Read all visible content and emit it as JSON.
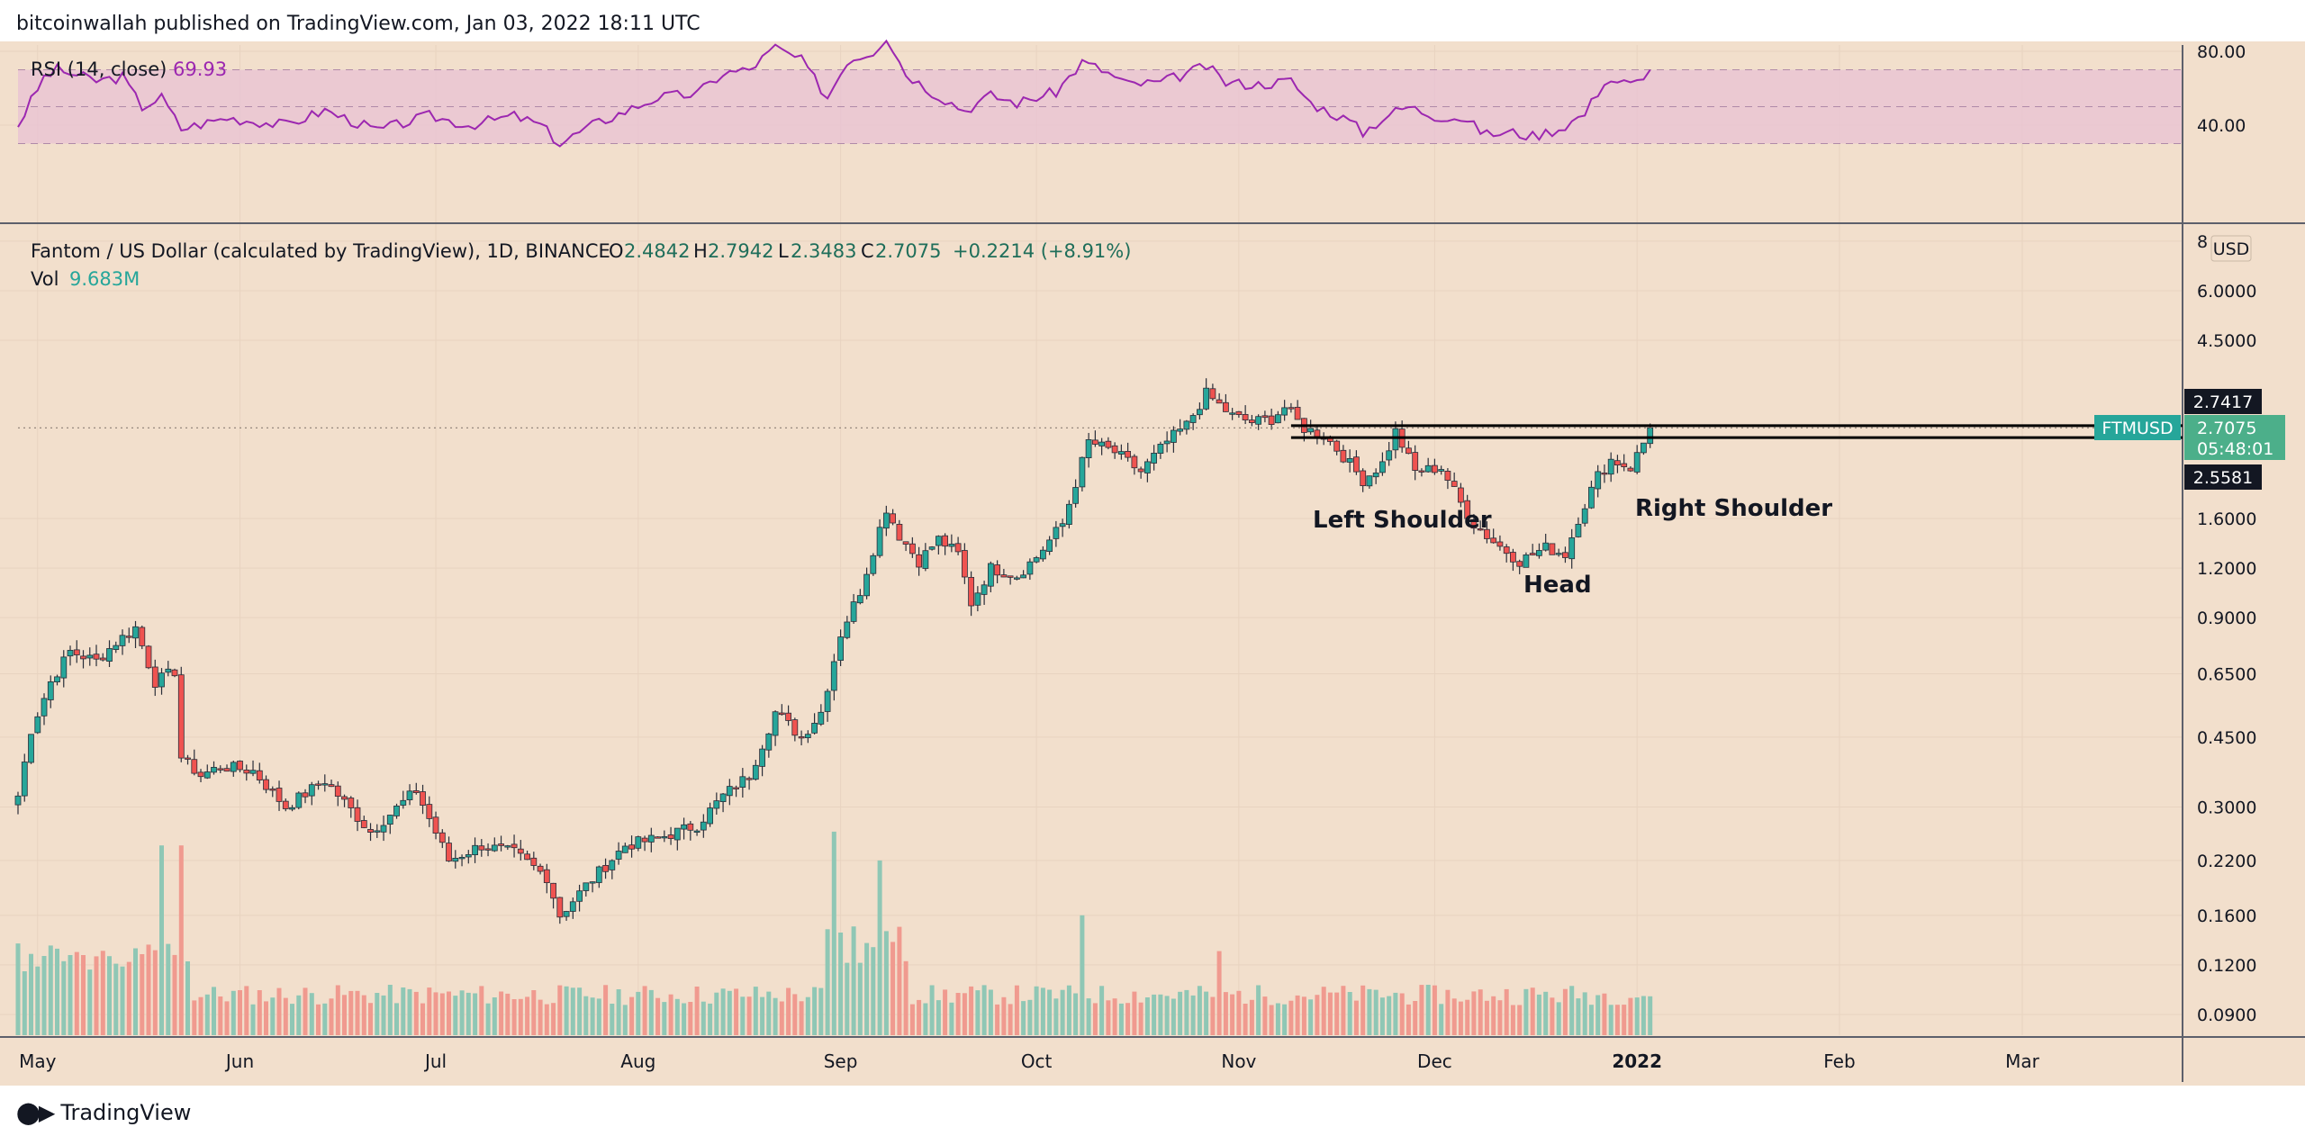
{
  "header": {
    "published": "bitcoinwallah published on TradingView.com, Jan 03, 2022 18:11 UTC"
  },
  "footer": {
    "brand": "TradingView",
    "logo_icon": "tradingview-logo-icon"
  },
  "colors": {
    "background": "#f2dfcc",
    "up": "#26a69a",
    "down": "#ef5350",
    "up_vol": "#8fc7b5",
    "down_vol": "#f09a8f",
    "rsi_line": "#9c27b0",
    "rsi_band": "#e8c3d3",
    "grid": "#e8d3c0",
    "text": "#131722",
    "price_label_bg": "#26a69a"
  },
  "rsi": {
    "title": "RSI (14, close)",
    "value": "69.93",
    "ticks": [
      "80.00",
      "40.00"
    ]
  },
  "main": {
    "title": "Fantom / US Dollar (calculated by TradingView), 1D, BINANCE",
    "ohlc": {
      "o_label": "O",
      "o": "2.4842",
      "h_label": "H",
      "h": "2.7942",
      "l_label": "L",
      "l": "2.3483",
      "c_label": "C",
      "c": "2.7075",
      "change": "+0.2214 (+8.91%)"
    },
    "vol_label": "Vol",
    "vol_value": "9.683M",
    "currency": "USD",
    "price_ticks": [
      "8",
      "6.0000",
      "4.5000",
      "1.6000",
      "1.2000",
      "0.9000",
      "0.6500",
      "0.4500",
      "0.3000",
      "0.2200",
      "0.1600",
      "0.1200",
      "0.0900"
    ],
    "month_labels": [
      "May",
      "Jun",
      "Jul",
      "Aug",
      "Sep",
      "Oct",
      "Nov",
      "Dec",
      "2022",
      "Feb",
      "Mar"
    ],
    "price_labels": {
      "upper_level": "2.7417",
      "symbol": "FTMUSD",
      "current": "2.7075",
      "countdown": "05:48:01",
      "lower_level": "2.5581"
    },
    "annotations": {
      "left_shoulder": "Left Shoulder",
      "head": "Head",
      "right_shoulder": "Right Shoulder"
    }
  },
  "chart_data": {
    "type": "candlestick",
    "series_name": "FTMUSD",
    "interval": "1D",
    "x_range": [
      "2021-04-28",
      "2022-03-25"
    ],
    "y_scale": "log",
    "resistance_levels": [
      2.7417,
      2.5581
    ],
    "last_close": 2.7075,
    "rsi_last": 69.93,
    "close_anchors": [
      [
        "2021-04-28",
        0.32
      ],
      [
        "2021-04-30",
        0.47
      ],
      [
        "2021-05-03",
        0.62
      ],
      [
        "2021-05-06",
        0.74
      ],
      [
        "2021-05-10",
        0.7
      ],
      [
        "2021-05-13",
        0.78
      ],
      [
        "2021-05-16",
        0.85
      ],
      [
        "2021-05-19",
        0.62
      ],
      [
        "2021-05-22",
        0.66
      ],
      [
        "2021-05-23",
        0.4
      ],
      [
        "2021-05-26",
        0.36
      ],
      [
        "2021-05-29",
        0.38
      ],
      [
        "2021-06-03",
        0.37
      ],
      [
        "2021-06-08",
        0.3
      ],
      [
        "2021-06-14",
        0.35
      ],
      [
        "2021-06-21",
        0.26
      ],
      [
        "2021-06-28",
        0.33
      ],
      [
        "2021-07-03",
        0.22
      ],
      [
        "2021-07-08",
        0.24
      ],
      [
        "2021-07-13",
        0.23
      ],
      [
        "2021-07-18",
        0.2
      ],
      [
        "2021-07-20",
        0.16
      ],
      [
        "2021-07-24",
        0.19
      ],
      [
        "2021-07-30",
        0.24
      ],
      [
        "2021-08-04",
        0.25
      ],
      [
        "2021-08-10",
        0.27
      ],
      [
        "2021-08-14",
        0.32
      ],
      [
        "2021-08-18",
        0.36
      ],
      [
        "2021-08-22",
        0.52
      ],
      [
        "2021-08-26",
        0.45
      ],
      [
        "2021-08-29",
        0.52
      ],
      [
        "2021-09-01",
        0.82
      ],
      [
        "2021-09-04",
        1.05
      ],
      [
        "2021-09-08",
        1.7
      ],
      [
        "2021-09-10",
        1.45
      ],
      [
        "2021-09-13",
        1.25
      ],
      [
        "2021-09-16",
        1.42
      ],
      [
        "2021-09-19",
        1.3
      ],
      [
        "2021-09-21",
        0.98
      ],
      [
        "2021-09-24",
        1.2
      ],
      [
        "2021-09-28",
        1.15
      ],
      [
        "2021-10-01",
        1.28
      ],
      [
        "2021-10-05",
        1.55
      ],
      [
        "2021-10-09",
        2.5
      ],
      [
        "2021-10-13",
        2.35
      ],
      [
        "2021-10-17",
        2.1
      ],
      [
        "2021-10-21",
        2.5
      ],
      [
        "2021-10-24",
        2.75
      ],
      [
        "2021-10-27",
        3.3
      ],
      [
        "2021-10-31",
        2.9
      ],
      [
        "2021-11-03",
        2.8
      ],
      [
        "2021-11-06",
        2.85
      ],
      [
        "2021-11-08",
        3.05
      ],
      [
        "2021-11-11",
        2.7
      ],
      [
        "2021-11-14",
        2.6
      ],
      [
        "2021-11-17",
        2.3
      ],
      [
        "2021-11-20",
        2.0
      ],
      [
        "2021-11-23",
        2.2
      ],
      [
        "2021-11-25",
        2.65
      ],
      [
        "2021-11-28",
        2.1
      ],
      [
        "2021-12-02",
        2.15
      ],
      [
        "2021-12-05",
        1.75
      ],
      [
        "2021-12-07",
        1.55
      ],
      [
        "2021-12-10",
        1.4
      ],
      [
        "2021-12-14",
        1.25
      ],
      [
        "2021-12-18",
        1.35
      ],
      [
        "2021-12-21",
        1.3
      ],
      [
        "2021-12-23",
        1.6
      ],
      [
        "2021-12-26",
        2.05
      ],
      [
        "2021-12-28",
        2.25
      ],
      [
        "2021-12-31",
        2.15
      ],
      [
        "2022-01-02",
        2.48
      ],
      [
        "2022-01-03",
        2.7075
      ]
    ],
    "rsi_anchors": [
      [
        "2021-04-28",
        40
      ],
      [
        "2021-05-02",
        66
      ],
      [
        "2021-05-04",
        70
      ],
      [
        "2021-05-10",
        64
      ],
      [
        "2021-05-14",
        66
      ],
      [
        "2021-05-17",
        50
      ],
      [
        "2021-05-20",
        55
      ],
      [
        "2021-05-23",
        38
      ],
      [
        "2021-05-30",
        44
      ],
      [
        "2021-06-08",
        40
      ],
      [
        "2021-06-14",
        48
      ],
      [
        "2021-06-22",
        37
      ],
      [
        "2021-06-30",
        45
      ],
      [
        "2021-07-06",
        40
      ],
      [
        "2021-07-13",
        45
      ],
      [
        "2021-07-17",
        40
      ],
      [
        "2021-07-20",
        30
      ],
      [
        "2021-07-25",
        40
      ],
      [
        "2021-08-04",
        55
      ],
      [
        "2021-08-10",
        57
      ],
      [
        "2021-08-14",
        68
      ],
      [
        "2021-08-18",
        70
      ],
      [
        "2021-08-22",
        82
      ],
      [
        "2021-08-26",
        75
      ],
      [
        "2021-08-30",
        55
      ],
      [
        "2021-09-02",
        75
      ],
      [
        "2021-09-06",
        80
      ],
      [
        "2021-09-08",
        88
      ],
      [
        "2021-09-11",
        68
      ],
      [
        "2021-09-15",
        58
      ],
      [
        "2021-09-20",
        48
      ],
      [
        "2021-09-24",
        56
      ],
      [
        "2021-09-28",
        52
      ],
      [
        "2021-10-01",
        55
      ],
      [
        "2021-10-04",
        58
      ],
      [
        "2021-10-08",
        74
      ],
      [
        "2021-10-11",
        70
      ],
      [
        "2021-10-15",
        62
      ],
      [
        "2021-10-20",
        63
      ],
      [
        "2021-10-24",
        68
      ],
      [
        "2021-10-27",
        72
      ],
      [
        "2021-10-30",
        63
      ],
      [
        "2021-11-04",
        62
      ],
      [
        "2021-11-09",
        64
      ],
      [
        "2021-11-12",
        52
      ],
      [
        "2021-11-18",
        42
      ],
      [
        "2021-11-20",
        36
      ],
      [
        "2021-11-24",
        46
      ],
      [
        "2021-11-27",
        50
      ],
      [
        "2021-12-01",
        45
      ],
      [
        "2021-12-05",
        44
      ],
      [
        "2021-12-09",
        35
      ],
      [
        "2021-12-13",
        36
      ],
      [
        "2021-12-16",
        34
      ],
      [
        "2021-12-20",
        38
      ],
      [
        "2021-12-24",
        46
      ],
      [
        "2021-12-27",
        64
      ],
      [
        "2021-12-29",
        64
      ],
      [
        "2021-12-31",
        62
      ],
      [
        "2022-01-02",
        64
      ],
      [
        "2022-01-03",
        69.93
      ]
    ],
    "volume_spikes": [
      [
        "2021-05-20",
        0.24
      ],
      [
        "2021-05-23",
        0.24
      ],
      [
        "2021-08-31",
        0.26
      ],
      [
        "2021-09-07",
        0.22
      ],
      [
        "2021-10-08",
        0.16
      ],
      [
        "2021-09-03",
        0.15
      ],
      [
        "2021-10-29",
        0.13
      ],
      [
        "2021-12-06",
        0.098
      ]
    ]
  }
}
